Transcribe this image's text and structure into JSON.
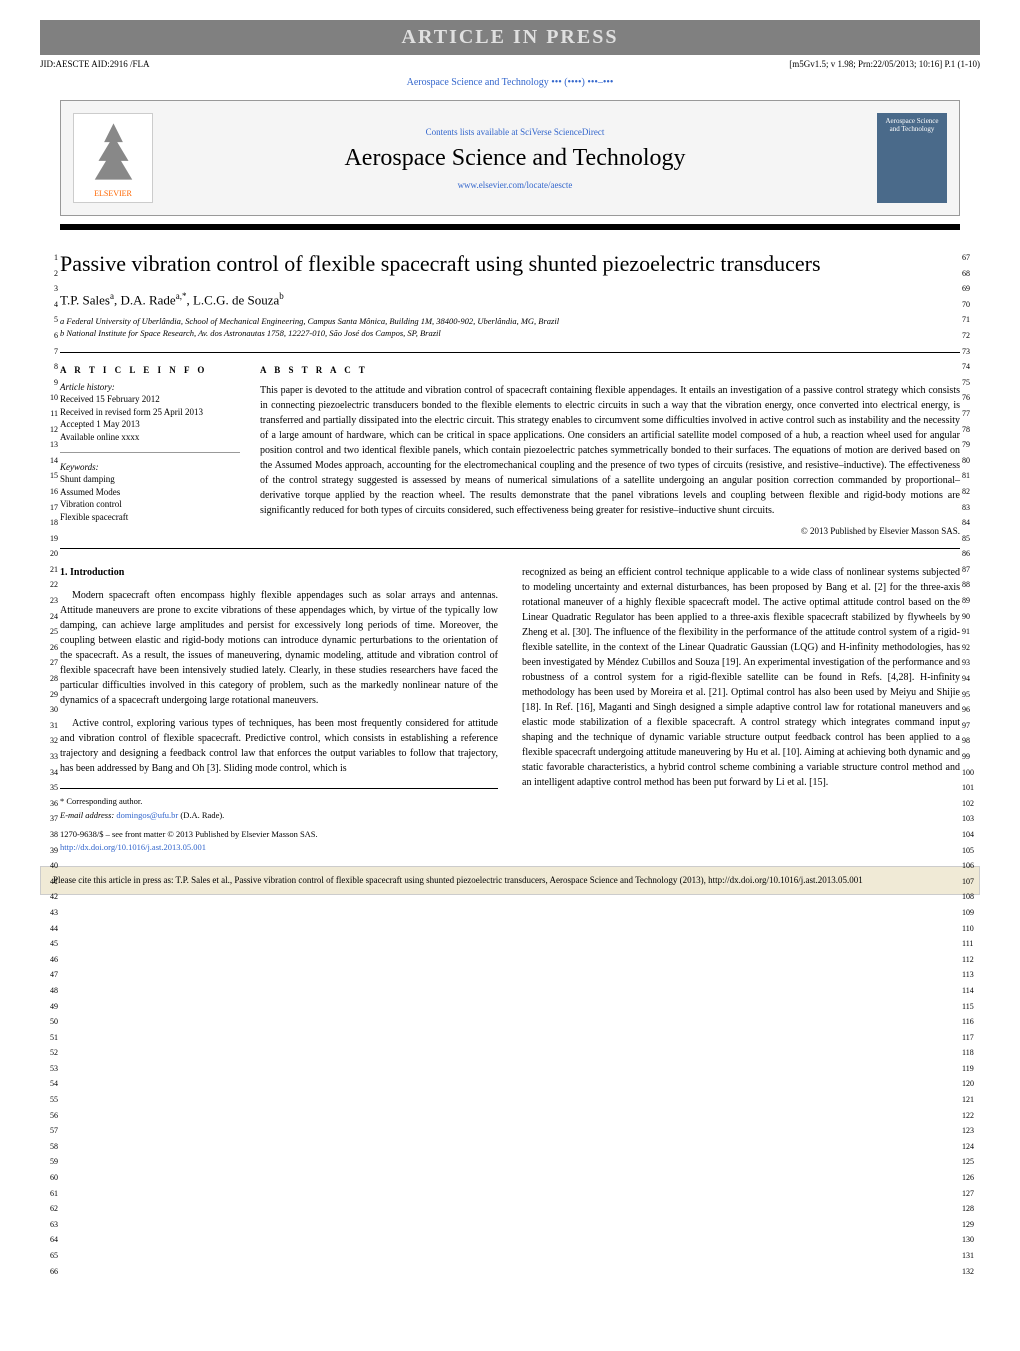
{
  "banner": "ARTICLE IN PRESS",
  "jid_left": "JID:AESCTE   AID:2916 /FLA",
  "jid_right": "[m5Gv1.5; v 1.98; Prn:22/05/2013; 10:16] P.1 (1-10)",
  "journal_link_top": "Aerospace Science and Technology ••• (••••) •••–•••",
  "header": {
    "contents_available": "Contents lists available at ",
    "sciverse": "SciVerse ScienceDirect",
    "journal_name": "Aerospace Science and Technology",
    "journal_url": "www.elsevier.com/locate/aescte",
    "elsevier": "ELSEVIER",
    "cover_text": "Aerospace Science and Technology"
  },
  "title": "Passive vibration control of flexible spacecraft using shunted piezoelectric transducers",
  "authors_html": "T.P. Sales",
  "author_a": "T.P. Sales",
  "author_b": "D.A. Rade",
  "author_c": "L.C.G. de Souza",
  "sup_a": "a",
  "sup_astar": "a,*",
  "sup_b": "b",
  "affil_a": "a Federal University of Uberlândia, School of Mechanical Engineering, Campus Santa Mônica, Building 1M, 38400-902, Uberlândia, MG, Brazil",
  "affil_b": "b National Institute for Space Research, Av. dos Astronautas 1758, 12227-010, São José dos Campos, SP, Brazil",
  "info_heading": "A R T I C L E   I N F O",
  "abstract_heading": "A B S T R A C T",
  "history_label": "Article history:",
  "history": {
    "received": "Received 15 February 2012",
    "revised": "Received in revised form 25 April 2013",
    "accepted": "Accepted 1 May 2013",
    "online": "Available online xxxx"
  },
  "keywords_label": "Keywords:",
  "keywords": {
    "k1": "Shunt damping",
    "k2": "Assumed Modes",
    "k3": "Vibration control",
    "k4": "Flexible spacecraft"
  },
  "abstract_text": "This paper is devoted to the attitude and vibration control of spacecraft containing flexible appendages. It entails an investigation of a passive control strategy which consists in connecting piezoelectric transducers bonded to the flexible elements to electric circuits in such a way that the vibration energy, once converted into electrical energy, is transferred and partially dissipated into the electric circuit. This strategy enables to circumvent some difficulties involved in active control such as instability and the necessity of a large amount of hardware, which can be critical in space applications. One considers an artificial satellite model composed of a hub, a reaction wheel used for angular position control and two identical flexible panels, which contain piezoelectric patches symmetrically bonded to their surfaces. The equations of motion are derived based on the Assumed Modes approach, accounting for the electromechanical coupling and the presence of two types of circuits (resistive, and resistive–inductive). The effectiveness of the control strategy suggested is assessed by means of numerical simulations of a satellite undergoing an angular position correction commanded by proportional–derivative torque applied by the reaction wheel. The results demonstrate that the panel vibrations levels and coupling between flexible and rigid-body motions are significantly reduced for both types of circuits considered, such effectiveness being greater for resistive–inductive shunt circuits.",
  "copyright": "© 2013 Published by Elsevier Masson SAS.",
  "section1": "1. Introduction",
  "col1_p1": "Modern spacecraft often encompass highly flexible appendages such as solar arrays and antennas. Attitude maneuvers are prone to excite vibrations of these appendages which, by virtue of the typically low damping, can achieve large amplitudes and persist for excessively long periods of time. Moreover, the coupling between elastic and rigid-body motions can introduce dynamic perturbations to the orientation of the spacecraft. As a result, the issues of maneuvering, dynamic modeling, attitude and vibration control of flexible spacecraft have been intensively studied lately. Clearly, in these studies researchers have faced the particular difficulties involved in this category of problem, such as the markedly nonlinear nature of the dynamics of a spacecraft undergoing large rotational maneuvers.",
  "col1_p2": "Active control, exploring various types of techniques, has been most frequently considered for attitude and vibration control of flexible spacecraft. Predictive control, which consists in establishing a reference trajectory and designing a feedback control law that enforces the output variables to follow that trajectory, has been addressed by Bang and Oh [3]. Sliding mode control, which is",
  "col2_p1": "recognized as being an efficient control technique applicable to a wide class of nonlinear systems subjected to modeling uncertainty and external disturbances, has been proposed by Bang et al. [2] for the three-axis rotational maneuver of a highly flexible spacecraft model. The active optimal attitude control based on the Linear Quadratic Regulator has been applied to a three-axis flexible spacecraft stabilized by flywheels by Zheng et al. [30]. The influence of the flexibility in the performance of the attitude control system of a rigid-flexible satellite, in the context of the Linear Quadratic Gaussian (LQG) and H-infinity methodologies, has been investigated by Méndez Cubillos and Souza [19]. An experimental investigation of the performance and robustness of a control system for a rigid-flexible satellite can be found in Refs. [4,28]. H-infinity methodology has been used by Moreira et al. [21]. Optimal control has also been used by Meiyu and Shijie [18]. In Ref. [16], Maganti and Singh designed a simple adaptive control law for rotational maneuvers and elastic mode stabilization of a flexible spacecraft. A control strategy which integrates command input shaping and the technique of dynamic variable structure output feedback control has been applied to a flexible spacecraft undergoing attitude maneuvering by Hu et al. [10]. Aiming at achieving both dynamic and static favorable characteristics, a hybrid control scheme combining a variable structure control method and an intelligent adaptive control method has been put forward by Li et al. [15].",
  "footnote": {
    "corr": "* Corresponding author.",
    "email_label": "E-mail address: ",
    "email": "domingos@ufu.br",
    "email_author": " (D.A. Rade)."
  },
  "front_matter": "1270-9638/$ – see front matter © 2013 Published by Elsevier Masson SAS.",
  "doi": "http://dx.doi.org/10.1016/j.ast.2013.05.001",
  "cite_box": "Please cite this article in press as: T.P. Sales et al., Passive vibration control of flexible spacecraft using shunted piezoelectric transducers, Aerospace Science and Technology (2013), http://dx.doi.org/10.1016/j.ast.2013.05.001",
  "line_numbers": {
    "left_start": 1,
    "left_end": 66,
    "right_start": 67,
    "right_end": 132
  },
  "colors": {
    "banner_bg": "#808080",
    "banner_fg": "#e0e0e0",
    "link": "#3366cc",
    "elsevier": "#ff6600",
    "cover_bg": "#4a6a8a",
    "cite_bg": "#f0ead6"
  }
}
